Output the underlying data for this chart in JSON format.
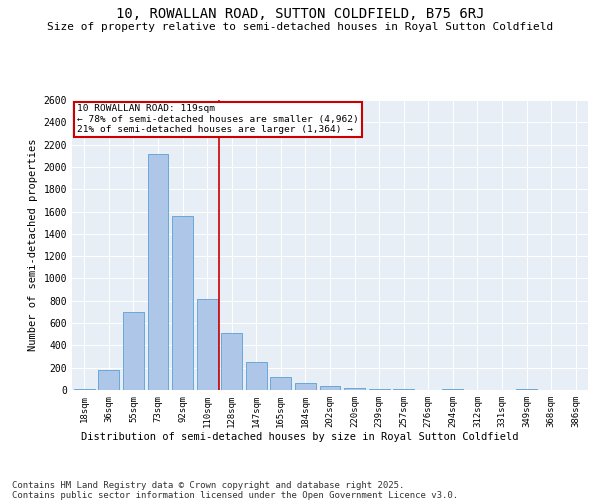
{
  "title": "10, ROWALLAN ROAD, SUTTON COLDFIELD, B75 6RJ",
  "subtitle": "Size of property relative to semi-detached houses in Royal Sutton Coldfield",
  "xlabel_dist": "Distribution of semi-detached houses by size in Royal Sutton Coldfield",
  "ylabel": "Number of semi-detached properties",
  "categories": [
    "18sqm",
    "36sqm",
    "55sqm",
    "73sqm",
    "92sqm",
    "110sqm",
    "128sqm",
    "147sqm",
    "165sqm",
    "184sqm",
    "202sqm",
    "220sqm",
    "239sqm",
    "257sqm",
    "276sqm",
    "294sqm",
    "312sqm",
    "331sqm",
    "349sqm",
    "368sqm",
    "386sqm"
  ],
  "values": [
    10,
    180,
    700,
    2120,
    1560,
    820,
    510,
    255,
    120,
    65,
    40,
    20,
    5,
    5,
    0,
    10,
    0,
    0,
    5,
    0,
    0
  ],
  "bar_color": "#aec6e8",
  "bar_edge_color": "#5a9fd4",
  "vline_x_index": 5.5,
  "vline_color": "#cc0000",
  "annotation_title": "10 ROWALLAN ROAD: 119sqm",
  "annotation_line1": "← 78% of semi-detached houses are smaller (4,962)",
  "annotation_line2": "21% of semi-detached houses are larger (1,364) →",
  "annotation_box_color": "#cc0000",
  "ylim": [
    0,
    2600
  ],
  "yticks": [
    0,
    200,
    400,
    600,
    800,
    1000,
    1200,
    1400,
    1600,
    1800,
    2000,
    2200,
    2400,
    2600
  ],
  "background_color": "#e8eef5",
  "footer": "Contains HM Land Registry data © Crown copyright and database right 2025.\nContains public sector information licensed under the Open Government Licence v3.0.",
  "title_fontsize": 10,
  "subtitle_fontsize": 8,
  "footer_fontsize": 6.5
}
